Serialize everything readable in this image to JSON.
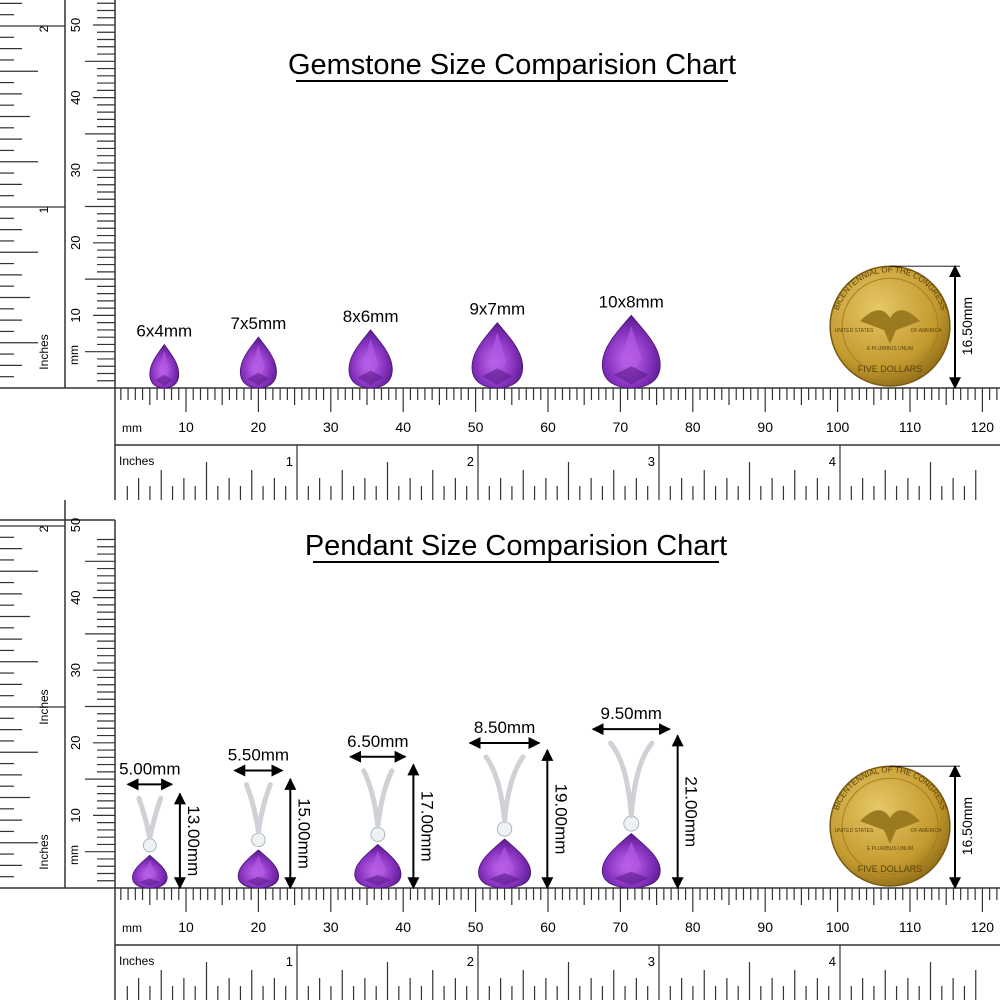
{
  "sections": [
    {
      "title": "Gemstone Size Comparision Chart",
      "left_inch_label": "Inches",
      "left_mm_label": "mm",
      "extra_left_label": "",
      "items": [
        {
          "label": "6x4mm",
          "length_mm": 6,
          "width_mm": 4,
          "pos_mm": 4.5
        },
        {
          "label": "7x5mm",
          "length_mm": 7,
          "width_mm": 5,
          "pos_mm": 17.5
        },
        {
          "label": "8x6mm",
          "length_mm": 8,
          "width_mm": 6,
          "pos_mm": 33
        },
        {
          "label": "9x7mm",
          "length_mm": 9,
          "width_mm": 7,
          "pos_mm": 50.5
        },
        {
          "label": "10x8mm",
          "length_mm": 10,
          "width_mm": 8,
          "pos_mm": 69
        }
      ]
    },
    {
      "title": "Pendant Size Comparision Chart",
      "left_inch_label": "Inches",
      "left_mm_label": "mm",
      "extra_left_label": "Inches",
      "items": [
        {
          "width_label": "5.00mm",
          "height_label": "13.00mm",
          "width_mm": 5.0,
          "height_mm": 13,
          "gem_mm": 6,
          "pos_mm": 2.5
        },
        {
          "width_label": "5.50mm",
          "height_label": "15.00mm",
          "width_mm": 5.5,
          "height_mm": 15,
          "gem_mm": 7,
          "pos_mm": 17.5
        },
        {
          "width_label": "6.50mm",
          "height_label": "17.00mm",
          "width_mm": 6.5,
          "height_mm": 17,
          "gem_mm": 8,
          "pos_mm": 34
        },
        {
          "width_label": "8.50mm",
          "height_label": "19.00mm",
          "width_mm": 8.5,
          "height_mm": 19,
          "gem_mm": 9,
          "pos_mm": 51.5
        },
        {
          "width_label": "9.50mm",
          "height_label": "21.00mm",
          "width_mm": 9.5,
          "height_mm": 21,
          "gem_mm": 10,
          "pos_mm": 69
        }
      ]
    }
  ],
  "coin": {
    "diameter_label": "16.50mm",
    "diameter_mm": 16.5,
    "text_top": "BICENTENNIAL OF THE CONGRESS",
    "text_bottom": "FIVE DOLLARS",
    "text_left": "UNITED STATES",
    "text_right": "OF AMERICA",
    "motto": "E PLURIBUS UNUM"
  },
  "rulers": {
    "mm_unit_label": "mm",
    "inch_unit_label": "Inches",
    "mm_ticks": [
      "10",
      "20",
      "30",
      "40",
      "50",
      "60",
      "70",
      "80",
      "90",
      "100",
      "110",
      "120"
    ],
    "inch_ticks": [
      "1",
      "2",
      "3",
      "4"
    ],
    "vertical_mm_ticks": [
      "10",
      "20",
      "30",
      "40",
      "50"
    ],
    "vertical_inch_ticks": [
      "1",
      "2"
    ]
  },
  "colors": {
    "amethyst": "#7a2fb0",
    "amethyst_light": "#b056e0",
    "gold": "#c9a233",
    "metal": "#d8d8dc"
  }
}
